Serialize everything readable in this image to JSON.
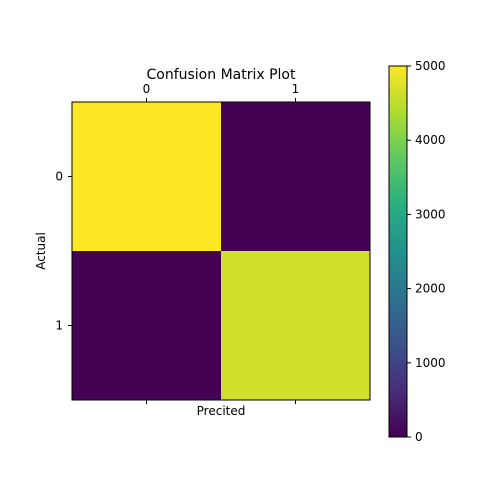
{
  "chart_data": {
    "type": "heatmap",
    "title": "Confusion Matrix Plot",
    "xlabel": "Precited",
    "ylabel": "Actual",
    "x_categories": [
      "0",
      "1"
    ],
    "y_categories": [
      "0",
      "1"
    ],
    "values": [
      [
        5000,
        15
      ],
      [
        20,
        4650
      ]
    ],
    "colormap": "viridis",
    "colorbar": {
      "min": 0,
      "max": 5000,
      "ticks": [
        0,
        1000,
        2000,
        3000,
        4000,
        5000
      ]
    },
    "x_ticks_position": "top",
    "grid": false
  }
}
